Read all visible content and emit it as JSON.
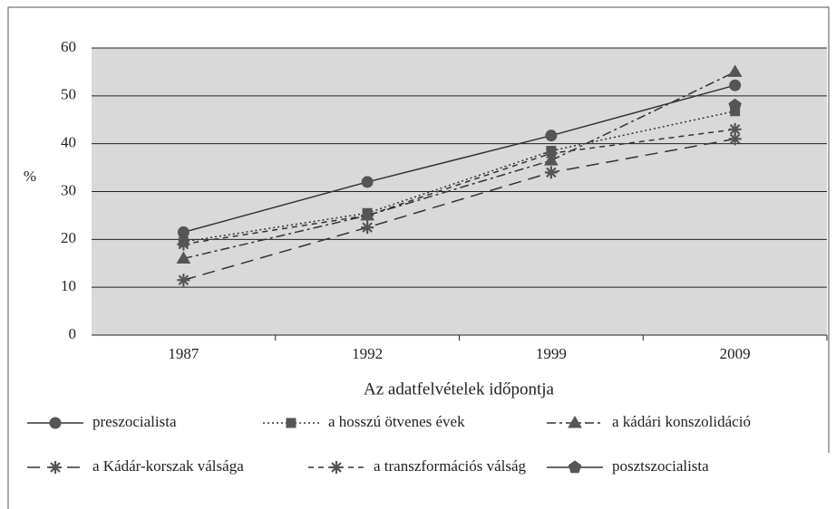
{
  "chart_data": {
    "type": "line",
    "ylabel": "%",
    "xlabel": "Az adatfelvételek időpontja",
    "categories": [
      "1987",
      "1992",
      "1999",
      "2009"
    ],
    "ylim": [
      0,
      60
    ],
    "yticks": [
      0,
      10,
      20,
      30,
      40,
      50,
      60
    ],
    "grid": true,
    "series": [
      {
        "name": "preszocialista",
        "color": "#333333",
        "marker": "circle",
        "line_style": "solid",
        "values": [
          21.5,
          32,
          41.7,
          52.2
        ]
      },
      {
        "name": "a hosszú ötvenes évek",
        "color": "#333333",
        "marker": "square",
        "line_style": "dotted",
        "values": [
          19.5,
          25.5,
          38.5,
          46.8
        ]
      },
      {
        "name": "a kádári konszolidáció",
        "color": "#333333",
        "marker": "triangle",
        "line_style": "dashdot",
        "values": [
          16,
          25,
          36.5,
          55
        ]
      },
      {
        "name": "a Kádár-korszak válsága",
        "color": "#333333",
        "marker": "asterisk",
        "line_style": "longdash",
        "values": [
          11.5,
          22.5,
          34,
          41
        ]
      },
      {
        "name": "a transzformációs válság",
        "color": "#333333",
        "marker": "asterisk",
        "line_style": "dashed",
        "values": [
          19,
          25,
          38,
          43
        ]
      },
      {
        "name": "posztszocialista",
        "color": "#333333",
        "marker": "pentagon",
        "line_style": "solid",
        "values": [
          null,
          null,
          null,
          48
        ]
      }
    ]
  }
}
